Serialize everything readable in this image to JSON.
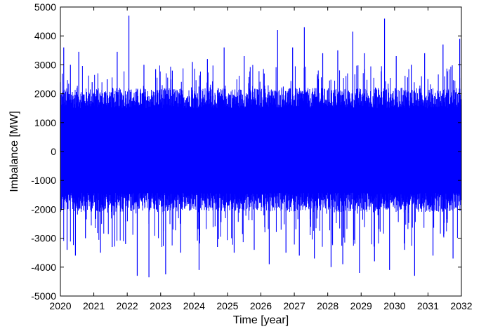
{
  "chart_data": {
    "type": "line",
    "title": "",
    "xlabel": "Time [year]",
    "ylabel": "Imbalance [MW]",
    "xlim": [
      2020,
      2032
    ],
    "ylim": [
      -5000,
      5000
    ],
    "xticks": [
      "2020",
      "2021",
      "2022",
      "2023",
      "2024",
      "2025",
      "2026",
      "2027",
      "2028",
      "2029",
      "2030",
      "2031",
      "2032"
    ],
    "yticks": [
      "5000",
      "4000",
      "3000",
      "2000",
      "1000",
      "0",
      "-1000",
      "-2000",
      "-3000",
      "-4000",
      "-5000"
    ],
    "grid": false,
    "legend": "none",
    "series": [
      {
        "color": "#0000ff",
        "typical_band": [
          -1900,
          2000
        ],
        "x": [
          2020.0,
          2020.1,
          2020.2,
          2020.3,
          2020.45,
          2020.55,
          2020.75,
          2020.95,
          2021.2,
          2021.4,
          2021.55,
          2021.7,
          2021.95,
          2022.05,
          2022.3,
          2022.5,
          2022.65,
          2022.85,
          2023.15,
          2023.35,
          2023.6,
          2023.95,
          2024.15,
          2024.4,
          2024.7,
          2024.9,
          2025.2,
          2025.5,
          2025.8,
          2026.1,
          2026.25,
          2026.5,
          2026.75,
          2026.95,
          2027.15,
          2027.3,
          2027.6,
          2027.85,
          2028.1,
          2028.3,
          2028.45,
          2028.75,
          2028.95,
          2029.1,
          2029.4,
          2029.7,
          2029.85,
          2030.05,
          2030.3,
          2030.5,
          2030.6,
          2030.9,
          2031.15,
          2031.45,
          2031.75,
          2031.95
        ],
        "y": [
          2400,
          3600,
          -3400,
          3000,
          -3600,
          3450,
          -3000,
          2400,
          -3500,
          2500,
          -3300,
          3450,
          -3200,
          4700,
          -4300,
          3000,
          -4350,
          2850,
          -4250,
          2800,
          -3500,
          3100,
          -4100,
          3200,
          -3300,
          3600,
          -3500,
          3300,
          -3400,
          2700,
          -3900,
          4200,
          -3500,
          3600,
          -3600,
          4300,
          -3700,
          3400,
          -4000,
          3500,
          -3900,
          4150,
          -4200,
          3400,
          -3800,
          4600,
          -4100,
          3300,
          -3400,
          3000,
          -4300,
          3400,
          -3600,
          3700,
          -3700,
          3900
        ]
      }
    ]
  }
}
